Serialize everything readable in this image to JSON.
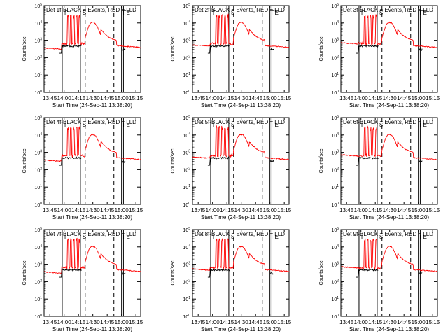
{
  "figure": {
    "xlabel": "Start Time (24-Sep-11 13:38:20)",
    "ylabel": "Counts/sec",
    "marker_labels": [
      "F",
      "S",
      "FE"
    ],
    "colors": {
      "events": "#000000",
      "lld": "#ff0000",
      "axes": "#000000",
      "background": "#ffffff"
    }
  },
  "chart_data": [
    {
      "type": "line",
      "title": "Det 1f-BLACK = Events, RED = LLD",
      "xlabel": "Start Time (24-Sep-11 13:38:20)",
      "ylabel": "Counts/sec",
      "y_scale": "log",
      "ylim": [
        1,
        100000
      ],
      "xlim": [
        "13:39",
        "15:20"
      ],
      "x_ticks": [
        "13:45",
        "14:00",
        "14:15",
        "14:30",
        "14:45",
        "15:00",
        "15:15"
      ],
      "y_ticks": [
        "10^0",
        "10^1",
        "10^2",
        "10^3",
        "10^4",
        "10^5"
      ],
      "markers": {
        "solid": [
          "13:58",
          "14:17",
          "15:00",
          "15:02"
        ],
        "dashed": [
          "14:22",
          "14:52"
        ]
      }
    },
    {
      "type": "line",
      "title": "Det 2f-BLACK = Events, RED = LLD",
      "xlabel": "Start Time (24-Sep-11 13:38:20)",
      "ylabel": "Counts/sec",
      "y_scale": "log",
      "ylim": [
        1,
        100000
      ],
      "xlim": [
        "13:39",
        "15:20"
      ],
      "x_ticks": [
        "13:45",
        "14:00",
        "14:15",
        "14:30",
        "14:45",
        "15:00",
        "15:15"
      ],
      "y_ticks": [
        "10^0",
        "10^1",
        "10^2",
        "10^3",
        "10^4",
        "10^5"
      ],
      "markers": {
        "solid": [
          "13:58",
          "14:17",
          "15:00",
          "15:02"
        ],
        "dashed": [
          "14:22",
          "14:52"
        ]
      }
    },
    {
      "type": "line",
      "title": "Det 3f-BLACK = Events, RED = LLD",
      "xlabel": "Start Time (24-Sep-11 13:38:20)",
      "ylabel": "Counts/sec",
      "y_scale": "log",
      "ylim": [
        1,
        100000
      ],
      "xlim": [
        "13:39",
        "15:20"
      ],
      "x_ticks": [
        "13:45",
        "14:00",
        "14:15",
        "14:30",
        "14:45",
        "15:00",
        "15:15"
      ],
      "y_ticks": [
        "10^0",
        "10^1",
        "10^2",
        "10^3",
        "10^4",
        "10^5"
      ],
      "markers": {
        "solid": [
          "13:58",
          "14:17",
          "15:00",
          "15:02"
        ],
        "dashed": [
          "14:22",
          "14:52"
        ]
      }
    },
    {
      "type": "line",
      "title": "Det 4f-BLACK = Events, RED = LLD",
      "xlabel": "Start Time (24-Sep-11 13:38:20)",
      "ylabel": "Counts/sec",
      "y_scale": "log",
      "ylim": [
        1,
        100000
      ],
      "xlim": [
        "13:39",
        "15:20"
      ],
      "x_ticks": [
        "13:45",
        "14:00",
        "14:15",
        "14:30",
        "14:45",
        "15:00",
        "15:15"
      ],
      "y_ticks": [
        "10^0",
        "10^1",
        "10^2",
        "10^3",
        "10^4",
        "10^5"
      ],
      "markers": {
        "solid": [
          "13:58",
          "14:17",
          "15:00",
          "15:02"
        ],
        "dashed": [
          "14:22",
          "14:52"
        ]
      }
    },
    {
      "type": "line",
      "title": "Det 5f-BLACK = Events, RED = LLD",
      "xlabel": "Start Time (24-Sep-11 13:38:20)",
      "ylabel": "Counts/sec",
      "y_scale": "log",
      "ylim": [
        1,
        100000
      ],
      "xlim": [
        "13:39",
        "15:20"
      ],
      "x_ticks": [
        "13:45",
        "14:00",
        "14:15",
        "14:30",
        "14:45",
        "15:00",
        "15:15"
      ],
      "y_ticks": [
        "10^0",
        "10^1",
        "10^2",
        "10^3",
        "10^4",
        "10^5"
      ],
      "markers": {
        "solid": [
          "13:58",
          "14:17",
          "15:00",
          "15:02"
        ],
        "dashed": [
          "14:22",
          "14:52"
        ]
      }
    },
    {
      "type": "line",
      "title": "Det 6f-BLACK = Events, RED = LLD",
      "xlabel": "Start Time (24-Sep-11 13:38:20)",
      "ylabel": "Counts/sec",
      "y_scale": "log",
      "ylim": [
        1,
        100000
      ],
      "xlim": [
        "13:39",
        "15:20"
      ],
      "x_ticks": [
        "13:45",
        "14:00",
        "14:15",
        "14:30",
        "14:45",
        "15:00",
        "15:15"
      ],
      "y_ticks": [
        "10^0",
        "10^1",
        "10^2",
        "10^3",
        "10^4",
        "10^5"
      ],
      "markers": {
        "solid": [
          "13:58",
          "14:17",
          "15:00",
          "15:02"
        ],
        "dashed": [
          "14:22",
          "14:52"
        ]
      }
    },
    {
      "type": "line",
      "title": "Det 7f-BLACK = Events, RED = LLD",
      "xlabel": "Start Time (24-Sep-11 13:38:20)",
      "ylabel": "Counts/sec",
      "y_scale": "log",
      "ylim": [
        1,
        100000
      ],
      "xlim": [
        "13:39",
        "15:20"
      ],
      "x_ticks": [
        "13:45",
        "14:00",
        "14:15",
        "14:30",
        "14:45",
        "15:00",
        "15:15"
      ],
      "y_ticks": [
        "10^0",
        "10^1",
        "10^2",
        "10^3",
        "10^4",
        "10^5"
      ],
      "markers": {
        "solid": [
          "13:58",
          "14:17",
          "15:00",
          "15:02"
        ],
        "dashed": [
          "14:22",
          "14:52"
        ]
      }
    },
    {
      "type": "line",
      "title": "Det 8f-BLACK = Events, RED = LLD",
      "xlabel": "Start Time (24-Sep-11 13:38:20)",
      "ylabel": "Counts/sec",
      "y_scale": "log",
      "ylim": [
        1,
        100000
      ],
      "xlim": [
        "13:39",
        "15:20"
      ],
      "x_ticks": [
        "13:45",
        "14:00",
        "14:15",
        "14:30",
        "14:45",
        "15:00",
        "15:15"
      ],
      "y_ticks": [
        "10^0",
        "10^1",
        "10^2",
        "10^3",
        "10^4",
        "10^5"
      ],
      "markers": {
        "solid": [
          "13:58",
          "14:17",
          "15:00",
          "15:02"
        ],
        "dashed": [
          "14:22",
          "14:52"
        ]
      }
    },
    {
      "type": "line",
      "title": "Det 9f-BLACK = Events, RED = LLD",
      "xlabel": "Start Time (24-Sep-11 13:38:20)",
      "ylabel": "Counts/sec",
      "y_scale": "log",
      "ylim": [
        1,
        100000
      ],
      "xlim": [
        "13:39",
        "15:20"
      ],
      "x_ticks": [
        "13:45",
        "14:00",
        "14:15",
        "14:30",
        "14:45",
        "15:00",
        "15:15"
      ],
      "y_ticks": [
        "10^0",
        "10^1",
        "10^2",
        "10^3",
        "10^4",
        "10^5"
      ],
      "markers": {
        "solid": [
          "13:58",
          "14:17",
          "15:00",
          "15:02"
        ],
        "dashed": [
          "14:22",
          "14:52"
        ]
      }
    }
  ]
}
